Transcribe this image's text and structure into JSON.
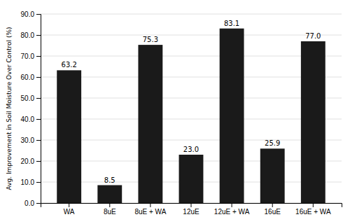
{
  "chart_data": {
    "type": "bar",
    "categories": [
      "WA",
      "8uE",
      "8uE + WA",
      "12uE",
      "12uE + WA",
      "16uE",
      "16uE + WA"
    ],
    "values": [
      63.2,
      8.5,
      75.3,
      23.0,
      83.1,
      25.9,
      77.0
    ],
    "value_labels": [
      "63.2",
      "8.5",
      "75.3",
      "23.0",
      "83.1",
      "25.9",
      "77.0"
    ],
    "data_labels": true,
    "color": "#1a1a1a",
    "ylabel": "Avg. Improvement in Soil Moisture Over Control (%)",
    "ylim": [
      0,
      90
    ],
    "yticks": [
      {
        "value": 0.0,
        "label": "0.0"
      },
      {
        "value": 10.0,
        "label": "10.0"
      },
      {
        "value": 20.0,
        "label": "20.0"
      },
      {
        "value": 30.0,
        "label": "30.0"
      },
      {
        "value": 40.0,
        "label": "40.0"
      },
      {
        "value": 50.0,
        "label": "50.0"
      },
      {
        "value": 60.0,
        "label": "60.0"
      },
      {
        "value": 70.0,
        "label": "70.0"
      },
      {
        "value": 80.0,
        "label": "80.0"
      },
      {
        "value": 90.0,
        "label": "90.0"
      }
    ],
    "grid": true
  }
}
